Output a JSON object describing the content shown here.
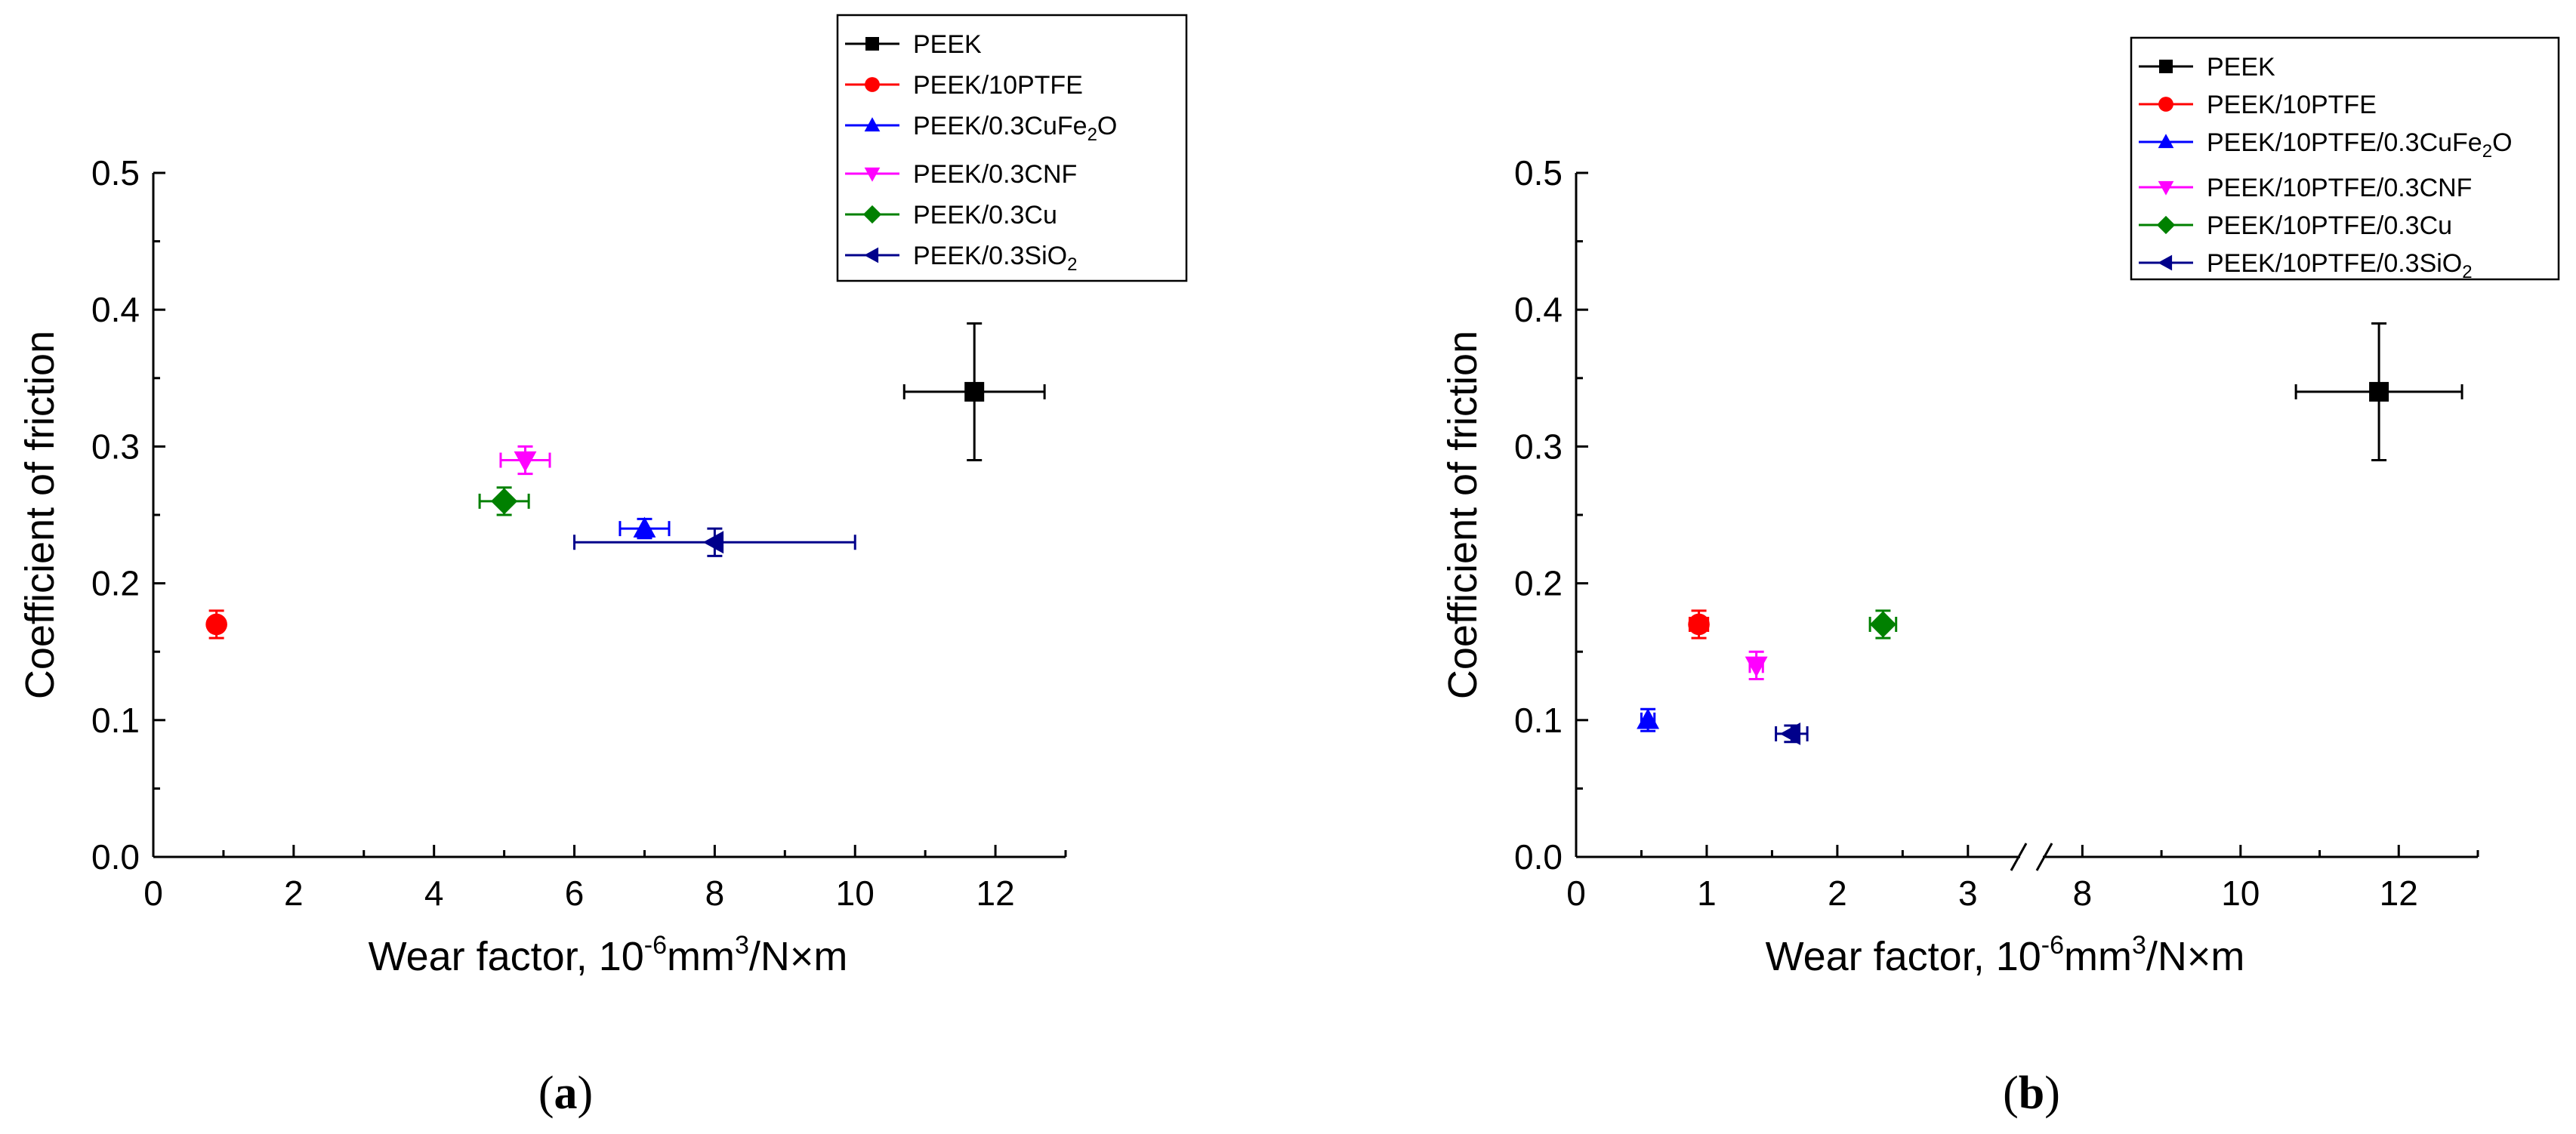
{
  "chart_data": [
    {
      "type": "scatter",
      "panel_label": "a",
      "xlabel_prefix": "Wear factor, 10",
      "xlabel_exp1": "-6",
      "xlabel_mid": "mm",
      "xlabel_exp2": "3",
      "xlabel_suffix": "/N×m",
      "ylabel": "Coefficient of friction",
      "xlim": [
        0,
        13
      ],
      "ylim": [
        0,
        0.5
      ],
      "xticks": [
        "0",
        "2",
        "4",
        "6",
        "8",
        "10",
        "12"
      ],
      "yticks": [
        "0.0",
        "0.1",
        "0.2",
        "0.3",
        "0.4",
        "0.5"
      ],
      "legend_position": "top-right",
      "series": [
        {
          "name": "PEEK",
          "sub": "",
          "tail": "",
          "color": "#000000",
          "marker": "square",
          "x": 11.7,
          "y": 0.34,
          "xerr": 1.0,
          "yerr": 0.05
        },
        {
          "name": "PEEK/10PTFE",
          "sub": "",
          "tail": "",
          "color": "#ff0000",
          "marker": "circle",
          "x": 0.9,
          "y": 0.17,
          "xerr": 0.0,
          "yerr": 0.01
        },
        {
          "name": "PEEK/0.3CuFe",
          "sub": "2",
          "tail": "O",
          "color": "#0000ff",
          "marker": "triangle-up",
          "x": 7.0,
          "y": 0.24,
          "xerr": 0.35,
          "yerr": 0.007
        },
        {
          "name": "PEEK/0.3CNF",
          "sub": "",
          "tail": "",
          "color": "#ff00ff",
          "marker": "triangle-down",
          "x": 5.3,
          "y": 0.29,
          "xerr": 0.35,
          "yerr": 0.01
        },
        {
          "name": "PEEK/0.3Cu",
          "sub": "",
          "tail": "",
          "color": "#008000",
          "marker": "diamond",
          "x": 5.0,
          "y": 0.26,
          "xerr": 0.35,
          "yerr": 0.01
        },
        {
          "name": "PEEK/0.3SiO",
          "sub": "2",
          "tail": "",
          "color": "#00008b",
          "marker": "triangle-left",
          "x": 8.0,
          "y": 0.23,
          "xerr_minus": 2.0,
          "xerr_plus": 2.0,
          "yerr": 0.01
        }
      ]
    },
    {
      "type": "scatter",
      "panel_label": "b",
      "xlabel_prefix": "Wear factor, 10",
      "xlabel_exp1": "-6",
      "xlabel_mid": "mm",
      "xlabel_exp2": "3",
      "xlabel_suffix": "/N×m",
      "ylabel": "Coefficient of friction",
      "x_axis_break": {
        "segment1": [
          0,
          3.4
        ],
        "segment2": [
          7.5,
          13
        ]
      },
      "ylim": [
        0,
        0.5
      ],
      "xticks_segment1": [
        "0",
        "1",
        "2",
        "3"
      ],
      "xticks_segment2": [
        "8",
        "10",
        "12"
      ],
      "yticks": [
        "0.0",
        "0.1",
        "0.2",
        "0.3",
        "0.4",
        "0.5"
      ],
      "legend_position": "top-right",
      "series": [
        {
          "name": "PEEK",
          "sub": "",
          "tail": "",
          "color": "#000000",
          "marker": "square",
          "x": 11.75,
          "y": 0.34,
          "xerr": 1.05,
          "yerr": 0.05
        },
        {
          "name": "PEEK/10PTFE",
          "sub": "",
          "tail": "",
          "color": "#ff0000",
          "marker": "circle",
          "x": 0.94,
          "y": 0.17,
          "xerr": 0.07,
          "yerr": 0.01
        },
        {
          "name": "PEEK/10PTFE/0.3CuFe",
          "sub": "2",
          "tail": "O",
          "color": "#0000ff",
          "marker": "triangle-up",
          "x": 0.55,
          "y": 0.1,
          "xerr": 0.05,
          "yerr": 0.008
        },
        {
          "name": "PEEK/10PTFE/0.3CNF",
          "sub": "",
          "tail": "",
          "color": "#ff00ff",
          "marker": "triangle-down",
          "x": 1.38,
          "y": 0.14,
          "xerr": 0.05,
          "yerr": 0.01
        },
        {
          "name": "PEEK/10PTFE/0.3Cu",
          "sub": "",
          "tail": "",
          "color": "#008000",
          "marker": "diamond",
          "x": 2.35,
          "y": 0.17,
          "xerr": 0.1,
          "yerr": 0.01
        },
        {
          "name": "PEEK/10PTFE/0.3SiO",
          "sub": "2",
          "tail": "",
          "color": "#00008b",
          "marker": "triangle-left",
          "x": 1.65,
          "y": 0.09,
          "xerr": 0.12,
          "yerr": 0.006
        }
      ]
    }
  ]
}
